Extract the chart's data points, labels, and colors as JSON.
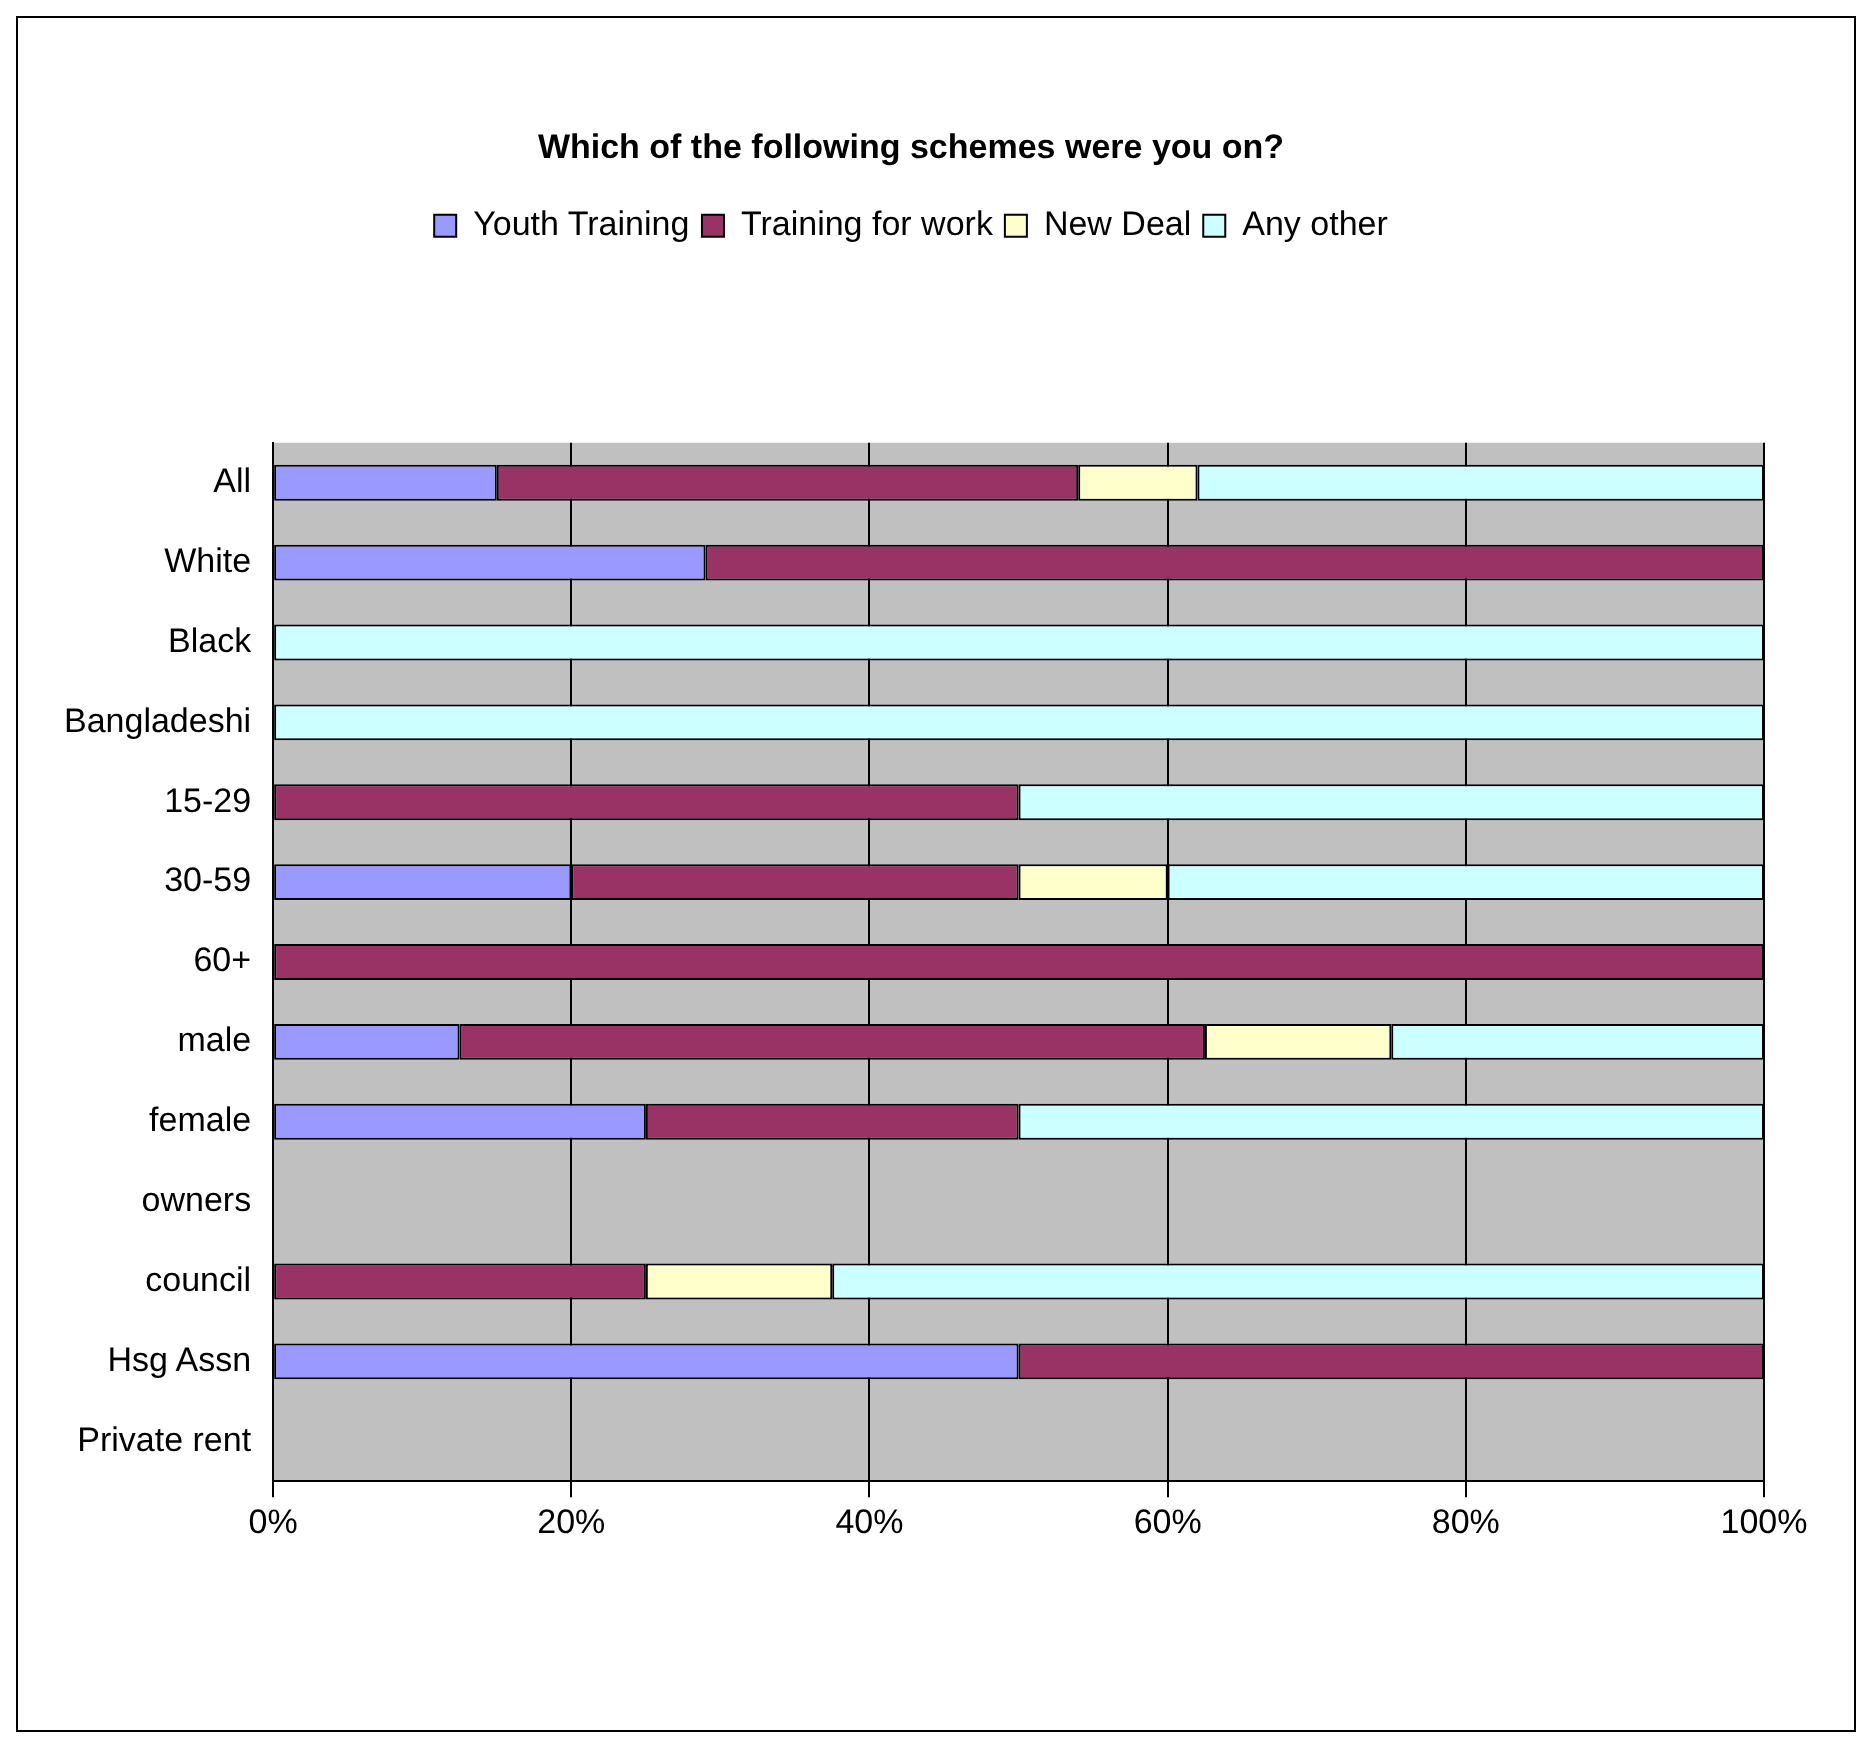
{
  "chart_data": {
    "type": "bar",
    "orientation": "horizontal",
    "stacked": true,
    "title": "Which of the following schemes were you on?",
    "categories": [
      "All",
      "White",
      "Black",
      "Bangladeshi",
      "15-29",
      "30-59",
      "60+",
      "male",
      "female",
      "owners",
      "council",
      "Hsg Assn",
      "Private rent"
    ],
    "series": [
      {
        "name": "Youth Training",
        "color": "#9999ff",
        "values": [
          15,
          29,
          0,
          0,
          0,
          20,
          0,
          12.5,
          25,
          0,
          0,
          50,
          0
        ]
      },
      {
        "name": "Training for work",
        "color": "#993366",
        "values": [
          39,
          71,
          0,
          0,
          50,
          30,
          100,
          50,
          25,
          0,
          25,
          50,
          0
        ]
      },
      {
        "name": "New Deal",
        "color": "#ffffcc",
        "values": [
          8,
          0,
          0,
          0,
          0,
          10,
          0,
          12.5,
          0,
          0,
          12.5,
          0,
          0
        ]
      },
      {
        "name": "Any other",
        "color": "#ccffff",
        "values": [
          38,
          0,
          100,
          100,
          50,
          40,
          0,
          25,
          50,
          0,
          62.5,
          0,
          0
        ]
      }
    ],
    "xlim": [
      0,
      100
    ],
    "xticks": [
      {
        "value": 0,
        "label": "0%"
      },
      {
        "value": 20,
        "label": "20%"
      },
      {
        "value": 40,
        "label": "40%"
      },
      {
        "value": 60,
        "label": "60%"
      },
      {
        "value": 80,
        "label": "80%"
      },
      {
        "value": 100,
        "label": "100%"
      }
    ],
    "grid": "x",
    "legend": "top"
  }
}
